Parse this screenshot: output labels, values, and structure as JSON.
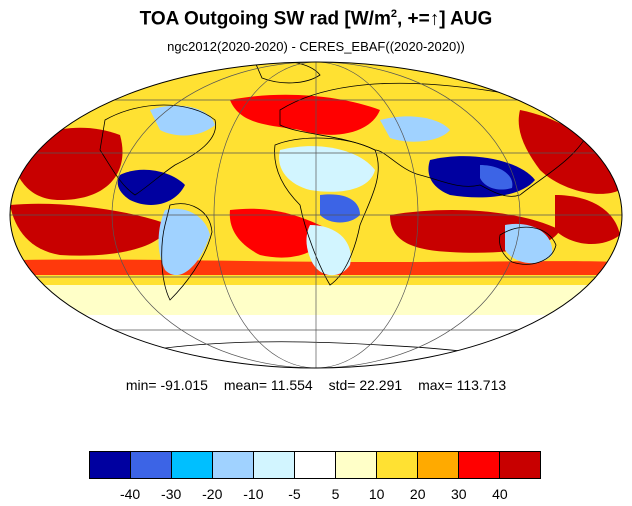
{
  "title": {
    "prefix": "TOA Outgoing SW rad [W/m",
    "superscript": "2",
    "suffix": ", +=↑] AUG"
  },
  "subtitle": "ngc2012(2020-2020) - CERES_EBAF((2020-2020))",
  "stats": {
    "min_label": "min=",
    "min": "-91.015",
    "mean_label": "mean=",
    "mean": "11.554",
    "std_label": "std=",
    "std": "22.291",
    "max_label": "max=",
    "max": "113.713"
  },
  "colorbar": {
    "colors": [
      "#0000a0",
      "#3c64e6",
      "#00bfff",
      "#a0d2ff",
      "#d2f5ff",
      "#ffffff",
      "#ffffc8",
      "#ffe132",
      "#ffaa00",
      "#ff0000",
      "#c80000"
    ],
    "tick_labels": [
      "-40",
      "-30",
      "-20",
      "-10",
      "-5",
      "5",
      "10",
      "20",
      "30",
      "40"
    ]
  },
  "map": {
    "projection": "Mollweide",
    "gridlines": true,
    "land_outline_color": "#000000"
  }
}
